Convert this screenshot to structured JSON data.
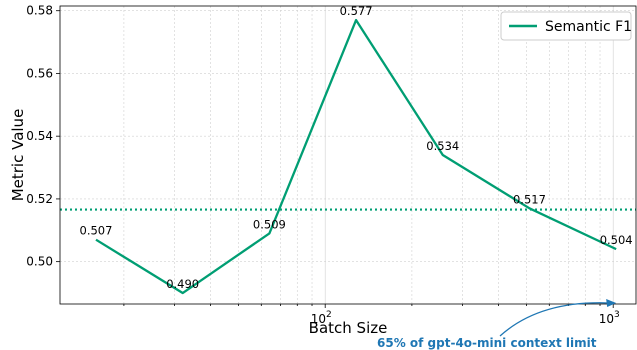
{
  "chart_data": {
    "type": "line",
    "xscale": "log",
    "xlabel": "Batch Size",
    "ylabel": "Metric Value",
    "xlim": [
      12,
      1200
    ],
    "ylim": [
      0.4865,
      0.5815
    ],
    "x_tick_labels": [
      {
        "value": 100,
        "base": "10",
        "exp": "2"
      },
      {
        "value": 1000,
        "base": "10",
        "exp": "3"
      }
    ],
    "y_ticks": [
      0.5,
      0.52,
      0.54,
      0.56,
      0.58
    ],
    "y_tick_labels": [
      "0.50",
      "0.52",
      "0.54",
      "0.56",
      "0.58"
    ],
    "grid": true,
    "series": [
      {
        "name": "Semantic F1",
        "color": "#009E73",
        "x": [
          16,
          32,
          64,
          128,
          256,
          512,
          1024
        ],
        "y": [
          0.507,
          0.49,
          0.509,
          0.577,
          0.534,
          0.517,
          0.504
        ],
        "labels": [
          "0.507",
          "0.490",
          "0.509",
          "0.577",
          "0.534",
          "0.517",
          "0.504"
        ]
      }
    ],
    "reference_line": {
      "y": 0.5166,
      "color": "#009E73",
      "style": "dotted"
    },
    "legend": {
      "position": "top-right",
      "entries": [
        "Semantic F1"
      ]
    },
    "annotation": {
      "text": "65% of gpt-4o-mini context limit",
      "color": "#1F77B4",
      "target_x": 1024
    }
  }
}
